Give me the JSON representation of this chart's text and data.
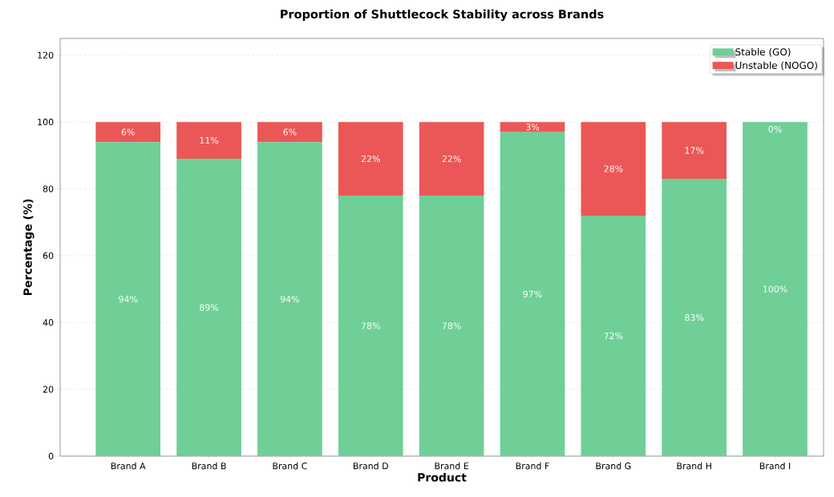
{
  "chart_data": {
    "type": "bar",
    "title": "Proportion of Shuttlecock Stability across Brands",
    "xlabel": "Product",
    "ylabel": "Percentage (%)",
    "categories": [
      "Brand A",
      "Brand B",
      "Brand C",
      "Brand D",
      "Brand E",
      "Brand F",
      "Brand G",
      "Brand H",
      "Brand I"
    ],
    "series": [
      {
        "name": "Stable (GO)",
        "color": "#6fcf97",
        "values": [
          94,
          89,
          94,
          78,
          78,
          97,
          72,
          83,
          100
        ],
        "value_labels": [
          "94%",
          "89%",
          "94%",
          "78%",
          "78%",
          "97%",
          "72%",
          "83%",
          "100%"
        ]
      },
      {
        "name": "Unstable (NOGO)",
        "color": "#eb5757",
        "values": [
          6,
          11,
          6,
          22,
          22,
          3,
          28,
          17,
          0
        ],
        "value_labels": [
          "6%",
          "11%",
          "6%",
          "22%",
          "22%",
          "3%",
          "28%",
          "17%",
          "0%"
        ]
      }
    ],
    "stacked": true,
    "ylim": [
      0,
      125
    ],
    "yticks": [
      0,
      20,
      40,
      60,
      80,
      100,
      120
    ],
    "grid": "y",
    "legend": "top right"
  }
}
